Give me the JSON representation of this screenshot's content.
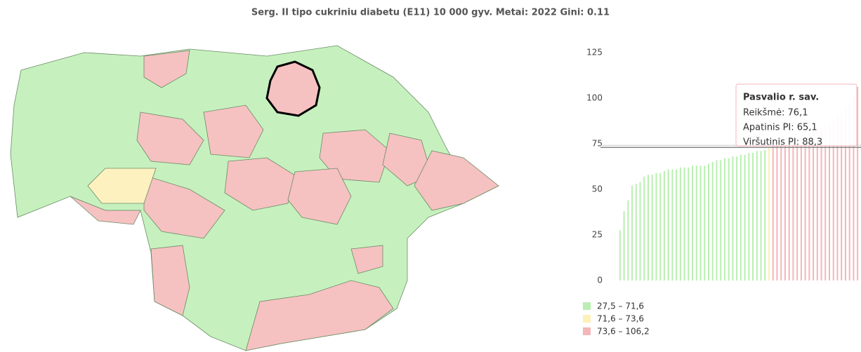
{
  "chart_data": {
    "type": "bar",
    "title": "Serg. II tipo cukriniu diabetu (E11) 10 000 gyv. Metai: 2022 Gini: 0.11",
    "categories": [
      null,
      null,
      null,
      null,
      null,
      null,
      null,
      null,
      null,
      null,
      null,
      null,
      null,
      null,
      null,
      null,
      null,
      null,
      null,
      null,
      null,
      null,
      null,
      null,
      null,
      null,
      null,
      null,
      null,
      null,
      null,
      null,
      null,
      null,
      null,
      null,
      null,
      null,
      null,
      null,
      null,
      null,
      null,
      null,
      null,
      null,
      null,
      null,
      null,
      null,
      null,
      null,
      null,
      null,
      null,
      null,
      null,
      null,
      null,
      null
    ],
    "series": [
      {
        "name": "27,5 – 71,6",
        "color": "#b9efb1",
        "values": [
          27.5,
          38,
          44,
          52,
          53,
          54,
          57,
          58,
          58,
          59,
          59,
          60,
          61,
          61,
          61,
          62,
          62,
          62,
          63,
          63,
          63,
          63,
          64,
          65,
          66,
          66,
          67,
          67,
          68,
          68,
          69,
          69,
          70,
          70,
          71,
          71,
          71.6,
          null,
          null,
          null,
          null,
          null,
          null,
          null,
          null,
          null,
          null,
          null,
          null,
          null,
          null,
          null,
          null,
          null,
          null,
          null,
          null,
          null,
          null,
          null
        ]
      },
      {
        "name": "71,6 – 73,6",
        "color": "#fdf0b8",
        "values": [
          null,
          null,
          null,
          null,
          null,
          null,
          null,
          null,
          null,
          null,
          null,
          null,
          null,
          null,
          null,
          null,
          null,
          null,
          null,
          null,
          null,
          null,
          null,
          null,
          null,
          null,
          null,
          null,
          null,
          null,
          null,
          null,
          null,
          null,
          null,
          null,
          null,
          72.8,
          null,
          null,
          null,
          null,
          null,
          null,
          null,
          null,
          null,
          null,
          null,
          null,
          null,
          null,
          null,
          null,
          null,
          null,
          null,
          null,
          null,
          null
        ]
      },
      {
        "name": "73,6 – 106,2",
        "color": "#f4b6b8",
        "values": [
          null,
          null,
          null,
          null,
          null,
          null,
          null,
          null,
          null,
          null,
          null,
          null,
          null,
          null,
          null,
          null,
          null,
          null,
          null,
          null,
          null,
          null,
          null,
          null,
          null,
          null,
          null,
          null,
          null,
          null,
          null,
          null,
          null,
          null,
          null,
          null,
          null,
          null,
          73.7,
          74,
          74.5,
          75,
          76.1,
          77,
          78,
          79,
          80,
          81,
          82,
          83,
          84,
          85,
          86,
          88,
          90,
          92,
          95,
          98,
          102,
          106.2
        ]
      }
    ],
    "ylim": [
      0,
      125
    ],
    "yticks": [
      0,
      25,
      50,
      75,
      100,
      125
    ],
    "reference_line": 73,
    "tooltip": {
      "title": "Pasvalio r. sav.",
      "lines": [
        "Reikšmė: 76,1",
        "Apatinis PI: 65,1",
        "Viršutinis PI: 88,3"
      ]
    }
  }
}
